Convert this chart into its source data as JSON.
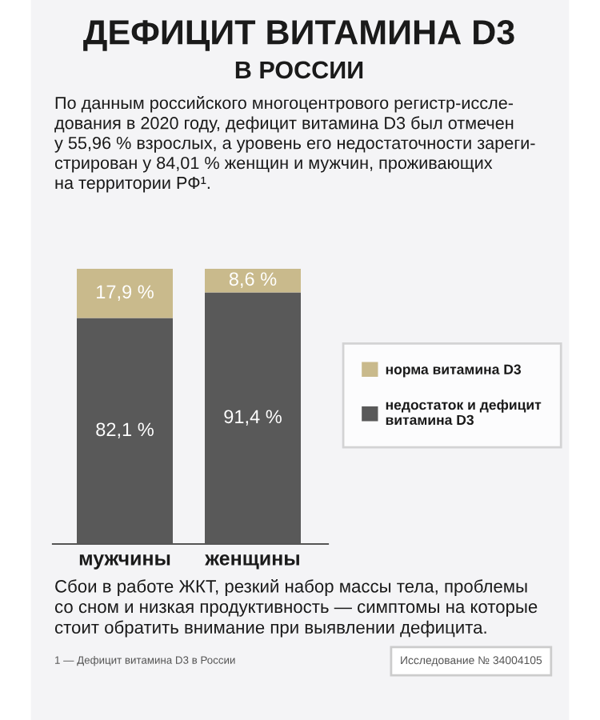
{
  "chart_data": {
    "type": "bar",
    "stacked": true,
    "title": "ДЕФИЦИТ ВИТАМИНА D3",
    "subtitle": "В РОССИИ",
    "categories": [
      "мужчины",
      "женщины"
    ],
    "series": [
      {
        "name": "недостаток и дефицит\nвитамина D3",
        "color": "#595959",
        "values": [
          82.1,
          91.4
        ],
        "value_labels": [
          "82,1 %",
          "91,4 %"
        ]
      },
      {
        "name": "норма витамина D3",
        "color": "#c9ba8c",
        "values": [
          17.9,
          8.6
        ],
        "value_labels": [
          "17,9 %",
          "8,6 %"
        ]
      }
    ],
    "ylim": [
      0,
      100
    ],
    "tick_labels": "x",
    "grid": false,
    "legend": "right",
    "annotations": [
      "По данным российского многоцентрового регистр-иссле-\nдования в 2020 году, дефицит витамина D3 был отмечен\nу 55,96 % взрослых, а уровень его недостаточности зареги-\nстрирован у 84,01 % женщин и мужчин, проживающих\nна территории РФ¹.",
      "Сбои в работе ЖКТ, резкий набор массы тела, проблемы\nсо сном и низкая продуктивность — симптомы на которые\nстоит обратить внимание при выявлении дефицита.",
      "1 — Дефицит витамина D3 в России",
      "Исследование № 34004105"
    ]
  }
}
